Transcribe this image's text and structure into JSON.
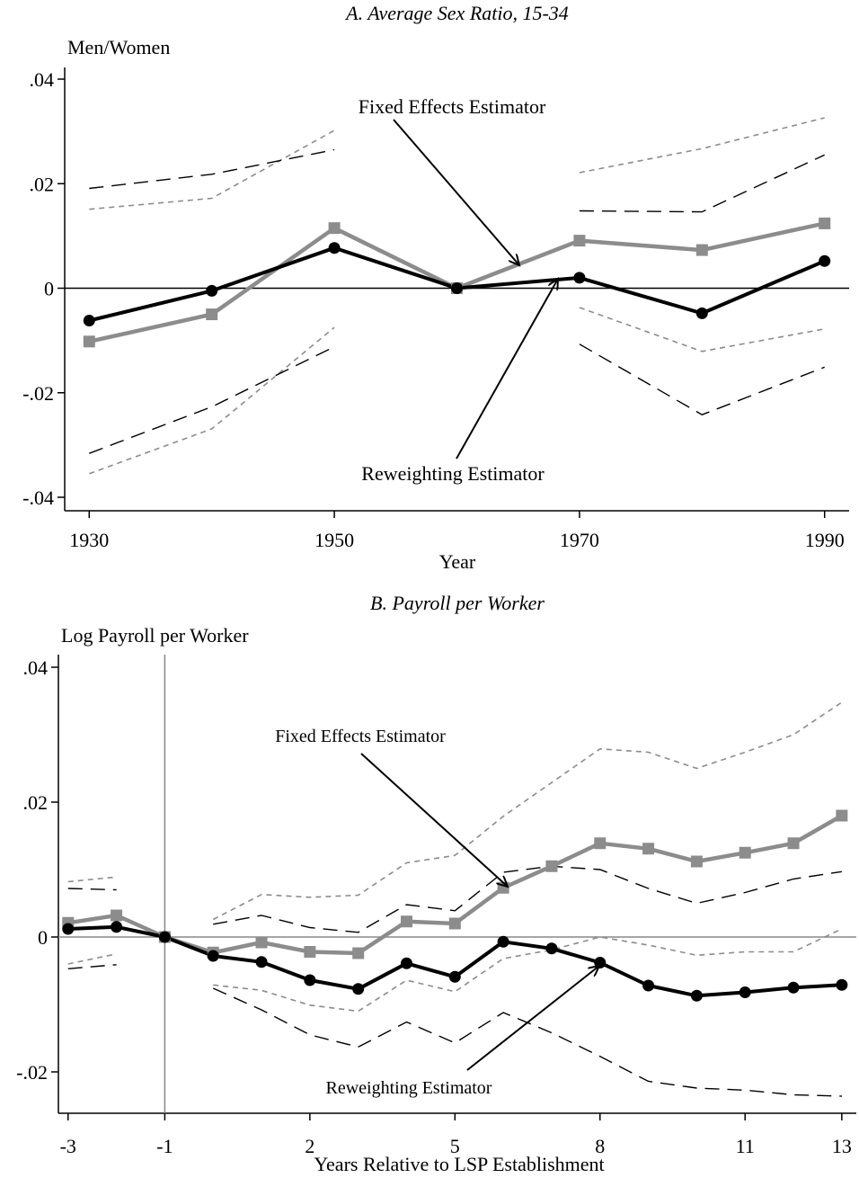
{
  "chart_data": [
    {
      "type": "line",
      "title": "A. Average Sex Ratio, 15-34",
      "ylabel": "Men/Women",
      "xlabel": "Year",
      "xlim": [
        1928,
        1992
      ],
      "ylim": [
        -0.04,
        0.04
      ],
      "x_ticks": [
        1930,
        1950,
        1970,
        1990
      ],
      "x_tick_labels": [
        "1930",
        "1950",
        "1970",
        "1990"
      ],
      "y_ticks": [
        0.04,
        0.02,
        0,
        -0.02,
        -0.04
      ],
      "y_tick_labels": [
        ".04",
        ".02",
        "0",
        "-.02",
        "-.04"
      ],
      "grid": false,
      "series": [
        {
          "role": "fixed_effects",
          "color": "#8c8c8c",
          "marker": "square",
          "x": [
            1930,
            1940,
            1950,
            1960,
            1970,
            1980,
            1990
          ],
          "values": [
            -0.0102,
            -0.005,
            0.0115,
            0.0,
            0.0091,
            0.0073,
            0.0124
          ]
        },
        {
          "role": "reweighting",
          "color": "#000000",
          "marker": "circle",
          "x": [
            1930,
            1940,
            1950,
            1960,
            1970,
            1980,
            1990
          ],
          "values": [
            -0.0062,
            -0.0005,
            0.0077,
            0.0,
            0.002,
            -0.0048,
            0.0052
          ]
        },
        {
          "role": "fixed_effects_ci_upper",
          "color": "#8c8c8c",
          "style": "short-dash",
          "segments": [
            {
              "x": [
                1930,
                1940,
                1950
              ],
              "values": [
                0.0151,
                0.0172,
                0.0302
              ]
            },
            {
              "x": [
                1970,
                1980,
                1990
              ],
              "values": [
                0.0221,
                0.0267,
                0.0326
              ]
            }
          ]
        },
        {
          "role": "fixed_effects_ci_lower",
          "color": "#8c8c8c",
          "style": "short-dash",
          "segments": [
            {
              "x": [
                1930,
                1940,
                1950
              ],
              "values": [
                -0.0355,
                -0.0269,
                -0.0075
              ]
            },
            {
              "x": [
                1970,
                1980,
                1990
              ],
              "values": [
                -0.0037,
                -0.0121,
                -0.0078
              ]
            }
          ]
        },
        {
          "role": "reweighting_ci_upper",
          "color": "#000000",
          "style": "long-dash",
          "segments": [
            {
              "x": [
                1930,
                1940,
                1950
              ],
              "values": [
                0.0191,
                0.0218,
                0.0265
              ]
            },
            {
              "x": [
                1970,
                1980,
                1990
              ],
              "values": [
                0.0148,
                0.0146,
                0.0255
              ]
            }
          ]
        },
        {
          "role": "reweighting_ci_lower",
          "color": "#000000",
          "style": "long-dash",
          "segments": [
            {
              "x": [
                1930,
                1940,
                1950
              ],
              "values": [
                -0.0316,
                -0.0227,
                -0.0112
              ]
            },
            {
              "x": [
                1970,
                1980,
                1990
              ],
              "values": [
                -0.0107,
                -0.0242,
                -0.0151
              ]
            }
          ]
        }
      ],
      "annotations": [
        {
          "text": "Fixed Effects Estimator",
          "arrow_to": [
            1965,
            0.0045
          ]
        },
        {
          "text": "Reweighting Estimator",
          "arrow_to": [
            1968,
            0.0018
          ]
        }
      ]
    },
    {
      "type": "line",
      "title": "B. Payroll per Worker",
      "ylabel": "Log Payroll per Worker",
      "xlabel": "Years Relative to LSP Establishment",
      "xlim": [
        -3.2,
        13.3
      ],
      "ylim": [
        -0.025,
        0.042
      ],
      "x_ticks": [
        -3,
        -1,
        2,
        5,
        8,
        11,
        13
      ],
      "x_tick_labels": [
        "-3",
        "-1",
        "2",
        "5",
        "8",
        "11",
        "13"
      ],
      "y_ticks": [
        0.04,
        0.02,
        0,
        -0.02
      ],
      "y_tick_labels": [
        ".04",
        ".02",
        "0",
        "-.02"
      ],
      "grid": false,
      "reference_line_x": -1,
      "series": [
        {
          "role": "fixed_effects",
          "color": "#8c8c8c",
          "marker": "square",
          "x": [
            -3,
            -2,
            -1,
            0,
            1,
            2,
            3,
            4,
            5,
            6,
            7,
            8,
            9,
            10,
            11,
            12,
            13
          ],
          "values": [
            0.0021,
            0.0032,
            0.0,
            -0.0023,
            -0.0008,
            -0.0022,
            -0.0024,
            0.0023,
            0.002,
            0.0073,
            0.0105,
            0.0139,
            0.0131,
            0.0112,
            0.0125,
            0.0139,
            0.018
          ]
        },
        {
          "role": "reweighting",
          "color": "#000000",
          "marker": "circle",
          "x": [
            -3,
            -2,
            -1,
            0,
            1,
            2,
            3,
            4,
            5,
            6,
            7,
            8,
            9,
            10,
            11,
            12,
            13
          ],
          "values": [
            0.0012,
            0.0015,
            0.0,
            -0.0028,
            -0.0037,
            -0.0064,
            -0.0077,
            -0.0039,
            -0.0059,
            -0.0007,
            -0.0017,
            -0.0038,
            -0.0072,
            -0.0087,
            -0.0082,
            -0.0075,
            -0.0071
          ]
        },
        {
          "role": "fixed_effects_ci_upper",
          "color": "#8c8c8c",
          "style": "short-dash",
          "segments": [
            {
              "x": [
                -3,
                -2
              ],
              "values": [
                0.0082,
                0.0089
              ]
            },
            {
              "x": [
                0,
                1,
                2,
                3,
                4,
                5,
                6,
                7,
                8,
                9,
                10,
                11,
                12,
                13
              ],
              "values": [
                0.0026,
                0.0063,
                0.0059,
                0.0062,
                0.011,
                0.0121,
                0.0179,
                0.0229,
                0.0279,
                0.0274,
                0.025,
                0.0274,
                0.03,
                0.0348
              ]
            }
          ]
        },
        {
          "role": "fixed_effects_ci_lower",
          "color": "#8c8c8c",
          "style": "short-dash",
          "segments": [
            {
              "x": [
                -3,
                -2
              ],
              "values": [
                -0.004,
                -0.0025
              ]
            },
            {
              "x": [
                0,
                1,
                2,
                3,
                4,
                5,
                6,
                7,
                8,
                9,
                10,
                11,
                12,
                13
              ],
              "values": [
                -0.0071,
                -0.0079,
                -0.0101,
                -0.011,
                -0.0064,
                -0.0081,
                -0.0032,
                -0.0019,
                0.0,
                -0.0012,
                -0.0027,
                -0.0022,
                -0.0022,
                0.0012
              ]
            }
          ]
        },
        {
          "role": "reweighting_ci_upper",
          "color": "#000000",
          "style": "long-dash",
          "segments": [
            {
              "x": [
                -3,
                -2
              ],
              "values": [
                0.0072,
                0.007
              ]
            },
            {
              "x": [
                0,
                1,
                2,
                3,
                4,
                5,
                6,
                7,
                8,
                9,
                10,
                11,
                12,
                13
              ],
              "values": [
                0.0019,
                0.0032,
                0.0014,
                0.0007,
                0.0048,
                0.0039,
                0.0096,
                0.0105,
                0.01,
                0.0072,
                0.005,
                0.0066,
                0.0086,
                0.0097
              ]
            }
          ]
        },
        {
          "role": "reweighting_ci_lower",
          "color": "#000000",
          "style": "long-dash",
          "segments": [
            {
              "x": [
                -3,
                -2
              ],
              "values": [
                -0.0047,
                -0.0041
              ]
            },
            {
              "x": [
                0,
                1,
                2,
                3,
                4,
                5,
                6,
                7,
                8,
                9,
                10,
                11,
                12,
                13
              ],
              "values": [
                -0.0076,
                -0.0108,
                -0.0145,
                -0.0163,
                -0.0126,
                -0.0157,
                -0.0112,
                -0.0142,
                -0.0177,
                -0.0214,
                -0.0224,
                -0.0227,
                -0.0234,
                -0.0236
              ]
            }
          ]
        }
      ],
      "annotations": [
        {
          "text": "Fixed Effects Estimator",
          "arrow_to": [
            5.7,
            0.0085
          ]
        },
        {
          "text": "Reweighting Estimator",
          "arrow_to": [
            8,
            -0.0035
          ]
        }
      ]
    }
  ]
}
